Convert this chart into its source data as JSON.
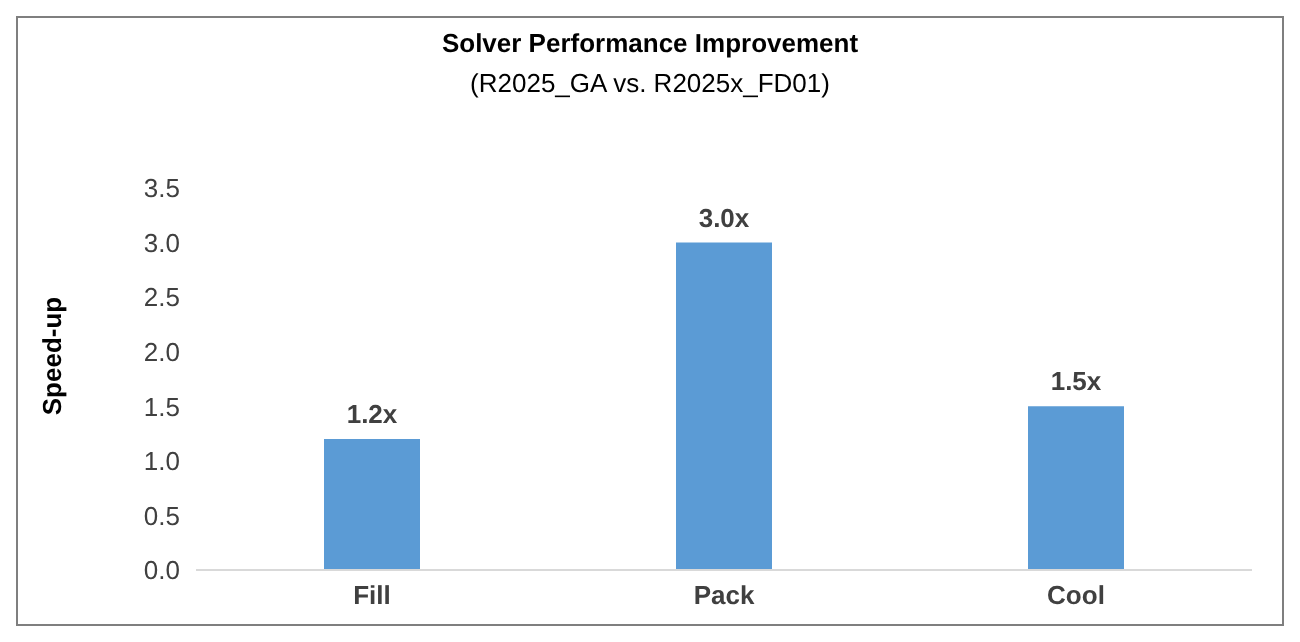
{
  "chart_data": {
    "type": "bar",
    "title": "Solver Performance Improvement",
    "subtitle": "(R2025_GA vs. R2025x_FD01)",
    "ylabel": "Speed-up",
    "categories": [
      "Fill",
      "Pack",
      "Cool"
    ],
    "values": [
      1.2,
      3.0,
      1.5
    ],
    "value_labels": [
      "1.2x",
      "3.0x",
      "1.5x"
    ],
    "color": "#5b9bd5",
    "ylim": [
      0,
      3.5
    ],
    "yticks": [
      {
        "value": 0,
        "label": "0.0"
      },
      {
        "value": 0.5,
        "label": "0.5"
      },
      {
        "value": 1,
        "label": "1.0"
      },
      {
        "value": 1.5,
        "label": "1.5"
      },
      {
        "value": 2,
        "label": "2.0"
      },
      {
        "value": 2.5,
        "label": "2.5"
      },
      {
        "value": 3,
        "label": "3.0"
      },
      {
        "value": 3.5,
        "label": "3.5"
      }
    ],
    "grid": false,
    "legend": false
  }
}
